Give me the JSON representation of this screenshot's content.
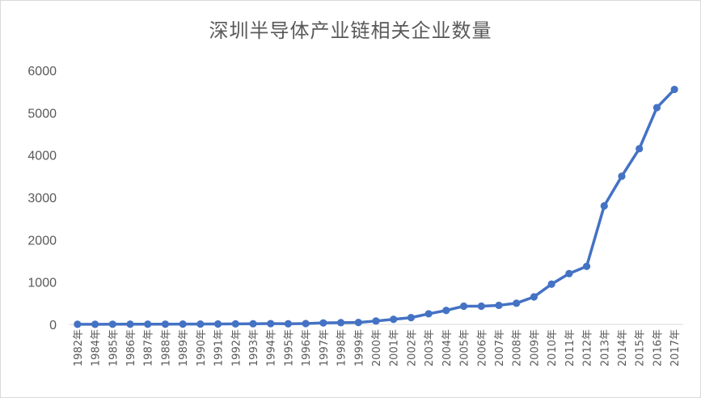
{
  "chart_data": {
    "type": "line",
    "title": "深圳半导体产业链相关企业数量",
    "xlabel": "",
    "ylabel": "",
    "ylim": [
      0,
      6000
    ],
    "yticks": [
      "0",
      "1000",
      "2000",
      "3000",
      "4000",
      "5000",
      "6000"
    ],
    "grid": false,
    "legend": "none",
    "categories": [
      "1982年",
      "1984年",
      "1985年",
      "1986年",
      "1987年",
      "1988年",
      "1989年",
      "1990年",
      "1991年",
      "1992年",
      "1993年",
      "1994年",
      "1995年",
      "1996年",
      "1997年",
      "1998年",
      "1999年",
      "2000年",
      "2001年",
      "2002年",
      "2003年",
      "2004年",
      "2005年",
      "2006年",
      "2007年",
      "2008年",
      "2009年",
      "2010年",
      "2011年",
      "2012年",
      "2013年",
      "2014年",
      "2015年",
      "2016年",
      "2017年"
    ],
    "series": [
      {
        "color": "#4472c4",
        "values": [
          2,
          3,
          4,
          5,
          5,
          6,
          7,
          8,
          10,
          12,
          15,
          18,
          14,
          20,
          35,
          40,
          45,
          80,
          120,
          160,
          250,
          330,
          430,
          430,
          450,
          500,
          650,
          950,
          1200,
          1370,
          2800,
          3500,
          4150,
          5120,
          5550
        ]
      }
    ]
  }
}
